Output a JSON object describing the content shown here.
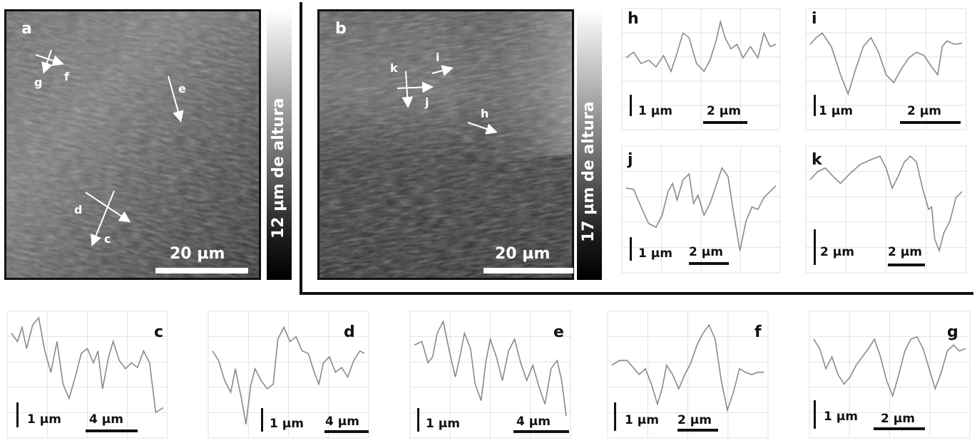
{
  "panel_a": {
    "letter": "a",
    "scale_label": "20 µm",
    "height_label": "12 µm de altura",
    "arrows": {
      "c": "c",
      "d": "d",
      "e": "e",
      "f": "f",
      "g": "g"
    }
  },
  "panel_b": {
    "letter": "b",
    "scale_label": "20 µm",
    "height_label": "17 µm de altura",
    "arrows": {
      "h": "h",
      "i": "i",
      "j": "j",
      "k": "k"
    }
  },
  "profiles": {
    "h": {
      "letter": "h",
      "v_scale": "1 µm",
      "h_scale": "2 µm"
    },
    "i": {
      "letter": "i",
      "v_scale": "1 µm",
      "h_scale": "2 µm"
    },
    "j": {
      "letter": "j",
      "v_scale": "1 µm",
      "h_scale": "2 µm"
    },
    "k": {
      "letter": "k",
      "v_scale": "2 µm",
      "h_scale": "2 µm"
    },
    "c": {
      "letter": "c",
      "v_scale": "1 µm",
      "h_scale": "4 µm"
    },
    "d": {
      "letter": "d",
      "v_scale": "1 µm",
      "h_scale": "4 µm"
    },
    "e": {
      "letter": "e",
      "v_scale": "1 µm",
      "h_scale": "4 µm"
    },
    "f": {
      "letter": "f",
      "v_scale": "1 µm",
      "h_scale": "2 µm"
    },
    "g": {
      "letter": "g",
      "v_scale": "1 µm",
      "h_scale": "2 µm"
    }
  },
  "colors": {
    "profile_line": "#8a8a8a",
    "grid": "#e2e2e2"
  }
}
